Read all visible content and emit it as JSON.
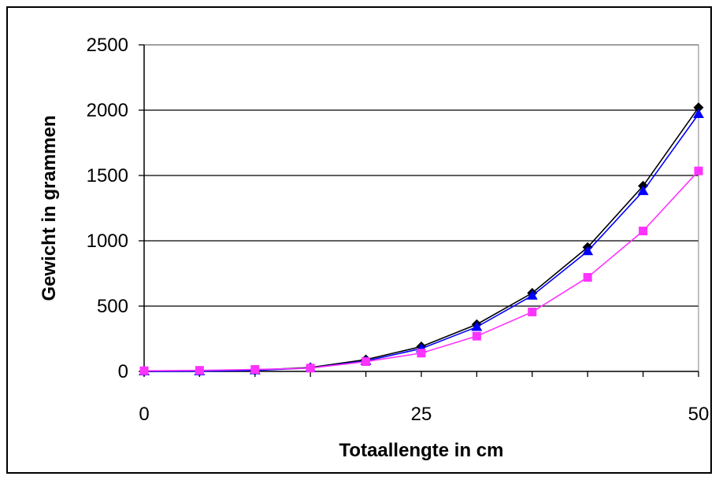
{
  "chart_data": {
    "type": "line",
    "title": "",
    "xlabel": "Totaallengte in cm",
    "ylabel": "Gewicht in grammen",
    "xlim": [
      0,
      50
    ],
    "ylim": [
      0,
      2500
    ],
    "x_ticks": [
      0,
      25,
      50
    ],
    "y_ticks": [
      0,
      500,
      1000,
      1500,
      2000,
      2500
    ],
    "grid": "horizontal",
    "legend": "none",
    "x": [
      0,
      5,
      10,
      15,
      20,
      25,
      30,
      35,
      40,
      45,
      50
    ],
    "series": [
      {
        "marker": "diamond",
        "color": "#000000",
        "values": [
          0,
          2,
          10,
          30,
          90,
          190,
          360,
          600,
          950,
          1420,
          2020
        ]
      },
      {
        "marker": "triangle",
        "color": "#0000FF",
        "values": [
          0,
          1,
          8,
          26,
          80,
          175,
          340,
          580,
          920,
          1380,
          1970
        ]
      },
      {
        "marker": "square",
        "color": "#FF33FF",
        "values": [
          5,
          8,
          15,
          25,
          75,
          140,
          270,
          455,
          720,
          1075,
          1535
        ]
      }
    ]
  }
}
